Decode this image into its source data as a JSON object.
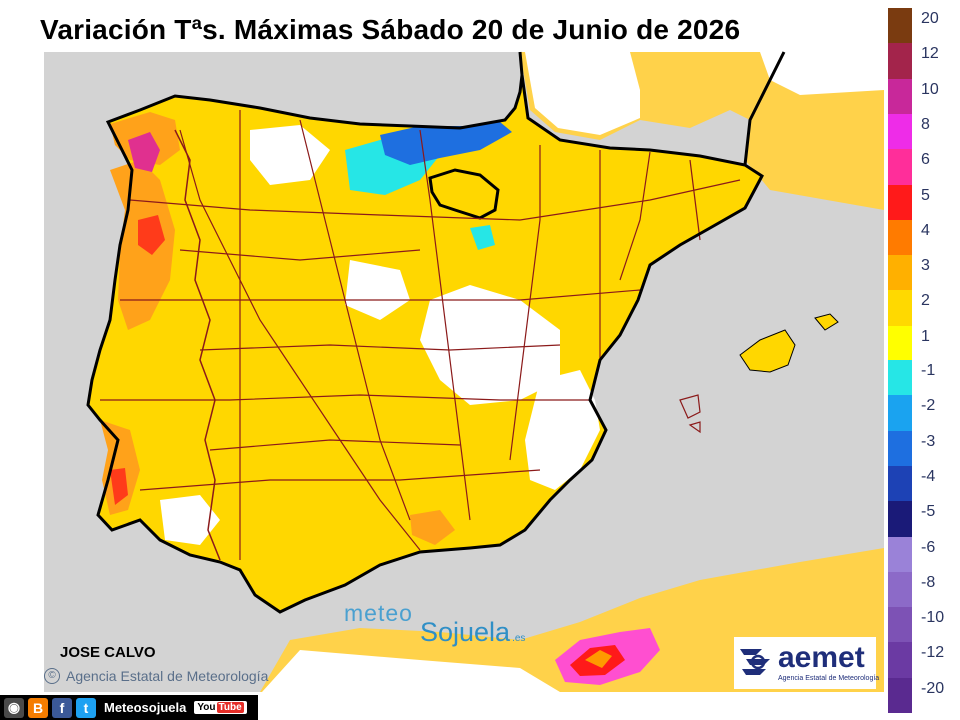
{
  "title": "Variación Tªs. Máximas Sábado 20 de Junio de 2026",
  "author": "JOSE CALVO",
  "agency_credit": {
    "symbol": "©",
    "text": "Agencia Estatal de Meteorología"
  },
  "watermark": {
    "top": "meteo",
    "bottom": "Sojuela",
    "suffix": ".es"
  },
  "aemet_logo": {
    "name": "aemet",
    "subtitle": "Agencia Estatal de Meteorología"
  },
  "social_bar": {
    "icons": [
      "instagram-icon",
      "blogger-icon",
      "facebook-icon",
      "twitter-icon"
    ],
    "handle": "Meteosojuela",
    "youtube": {
      "you": "You",
      "tube": "Tube"
    }
  },
  "legend": {
    "positive": [
      {
        "label": "20",
        "color": "#7a3b10"
      },
      {
        "label": "12",
        "color": "#a3244b"
      },
      {
        "label": "10",
        "color": "#c8289a"
      },
      {
        "label": "8",
        "color": "#ee2ce8"
      },
      {
        "label": "6",
        "color": "#ff2e9a"
      },
      {
        "label": "5",
        "color": "#ff1a1a"
      },
      {
        "label": "4",
        "color": "#ff7b00"
      },
      {
        "label": "3",
        "color": "#ffb000"
      },
      {
        "label": "2",
        "color": "#ffd900"
      },
      {
        "label": "1",
        "color": "#ffff00"
      }
    ],
    "negative": [
      {
        "label": "-1",
        "color": "#26e6e6"
      },
      {
        "label": "-2",
        "color": "#1aa3f0"
      },
      {
        "label": "-3",
        "color": "#1e6fe0"
      },
      {
        "label": "-4",
        "color": "#1d42b5"
      },
      {
        "label": "-5",
        "color": "#1a1a78"
      },
      {
        "label": "-6",
        "color": "#9a82d8"
      },
      {
        "label": "-8",
        "color": "#8c6ac8"
      },
      {
        "label": "-10",
        "color": "#7d52b5"
      },
      {
        "label": "-12",
        "color": "#6b3aa3"
      },
      {
        "label": "-20",
        "color": "#5a2a90"
      }
    ]
  },
  "colors": {
    "sea": "#d3d3d3",
    "land_base": "#ffd24a",
    "border_lines": "#8b1a1a",
    "coastline": "#000000"
  }
}
